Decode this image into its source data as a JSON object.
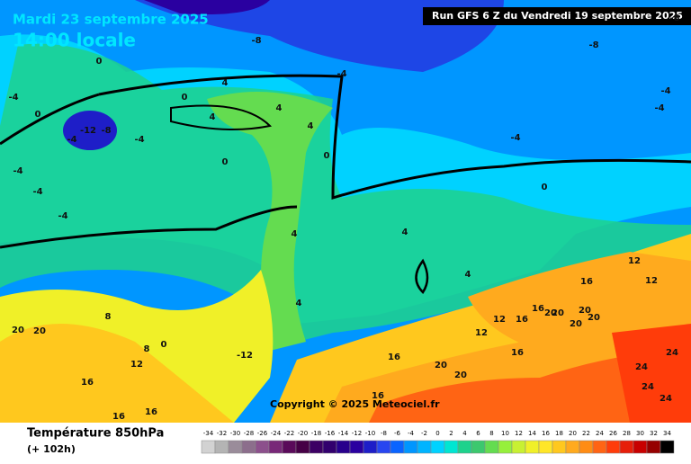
{
  "header": {
    "date": "Mardi 23 septembre 2025",
    "time": "14:00 locale",
    "run": "Run GFS 6 Z du Vendredi 19 septembre 2025"
  },
  "copyright": "Copyright © 2025 Meteociel.fr",
  "footer": {
    "title": "Température 850hPa",
    "lead": "(+ 102h)"
  },
  "legend": {
    "values": [
      -34,
      -32,
      -30,
      -28,
      -26,
      -24,
      -22,
      -20,
      -18,
      -16,
      -14,
      -12,
      -10,
      -8,
      -6,
      -4,
      -2,
      0,
      2,
      4,
      6,
      8,
      10,
      12,
      14,
      16,
      18,
      20,
      22,
      24,
      26,
      28,
      30,
      32,
      34
    ],
    "colors": [
      "#d2d2d2",
      "#b4b4b4",
      "#9a8c9a",
      "#8c6e8c",
      "#8c508c",
      "#782878",
      "#5a0a5a",
      "#460046",
      "#3c0064",
      "#32006e",
      "#28008c",
      "#2a00a0",
      "#1e1ec8",
      "#2846f0",
      "#0a64ff",
      "#0096ff",
      "#00b4ff",
      "#00d2ff",
      "#00e6d2",
      "#1ed28c",
      "#3cc86e",
      "#64dc50",
      "#96f03c",
      "#c8f032",
      "#f0f028",
      "#ffe628",
      "#ffc81e",
      "#ffaa1e",
      "#ff8c14",
      "#ff6414",
      "#ff3c0a",
      "#e61e0a",
      "#c80000",
      "#960000",
      "#000000"
    ]
  },
  "map_labels": [
    -8,
    -8,
    -8,
    -4,
    -4,
    -4,
    -4,
    -4,
    0,
    0,
    0,
    -12,
    -8,
    -4,
    -4,
    -4,
    -4,
    -4,
    0,
    4,
    4,
    4,
    4,
    0,
    0,
    4,
    4,
    0,
    8,
    8,
    12,
    12,
    16,
    16,
    16,
    20,
    20,
    16,
    12,
    12,
    16,
    20,
    20,
    24,
    24,
    20,
    16,
    16,
    20,
    24,
    24,
    12,
    -12,
    16,
    16,
    20,
    20,
    20,
    4,
    4
  ]
}
